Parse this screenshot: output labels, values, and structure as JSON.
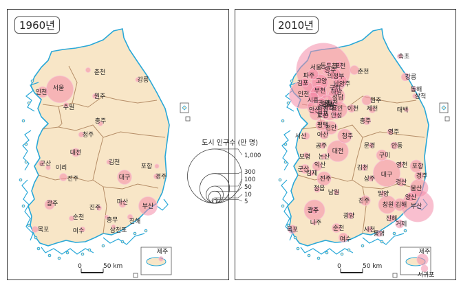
{
  "maps": [
    {
      "title": "1960년",
      "cities": [
        {
          "name": "서울",
          "pop": 245
        },
        {
          "name": "인천",
          "pop": 40
        },
        {
          "name": "수원",
          "pop": 8
        },
        {
          "name": "춘천",
          "pop": 8
        },
        {
          "name": "원주",
          "pop": 8
        },
        {
          "name": "강릉",
          "pop": 6
        },
        {
          "name": "청주",
          "pop": 9
        },
        {
          "name": "충주",
          "pop": 7
        },
        {
          "name": "대전",
          "pop": 23
        },
        {
          "name": "군산",
          "pop": 9
        },
        {
          "name": "이리",
          "pop": 7
        },
        {
          "name": "전주",
          "pop": 19
        },
        {
          "name": "김천",
          "pop": 6
        },
        {
          "name": "대구",
          "pop": 68
        },
        {
          "name": "포항",
          "pop": 6
        },
        {
          "name": "경주",
          "pop": 8
        },
        {
          "name": "광주",
          "pop": 31
        },
        {
          "name": "목포",
          "pop": 13
        },
        {
          "name": "순천",
          "pop": 8
        },
        {
          "name": "여수",
          "pop": 9
        },
        {
          "name": "진주",
          "pop": 8
        },
        {
          "name": "마산",
          "pop": 16
        },
        {
          "name": "충무",
          "pop": 5
        },
        {
          "name": "진해",
          "pop": 9
        },
        {
          "name": "삼천포",
          "pop": 5
        },
        {
          "name": "부산",
          "pop": 116
        },
        {
          "name": "제주",
          "pop": 7
        }
      ],
      "scale_label": "0 50 km"
    },
    {
      "title": "2010년",
      "cities": [
        {
          "name": "서울",
          "pop": 979
        },
        {
          "name": "동두천",
          "pop": 9
        },
        {
          "name": "포천",
          "pop": 15
        },
        {
          "name": "파주",
          "pop": 40
        },
        {
          "name": "의정부",
          "pop": 43
        },
        {
          "name": "양주",
          "pop": 20
        },
        {
          "name": "남양주",
          "pop": 53
        },
        {
          "name": "김포",
          "pop": 24
        },
        {
          "name": "고양",
          "pop": 90
        },
        {
          "name": "구리",
          "pop": 18
        },
        {
          "name": "하남",
          "pop": 15
        },
        {
          "name": "인천",
          "pop": 266
        },
        {
          "name": "부천",
          "pop": 87
        },
        {
          "name": "시흥",
          "pop": 40
        },
        {
          "name": "광명",
          "pop": 34
        },
        {
          "name": "안양",
          "pop": 60
        },
        {
          "name": "성남",
          "pop": 95
        },
        {
          "name": "광주",
          "pop": 21
        },
        {
          "name": "안산",
          "pop": 69
        },
        {
          "name": "군포",
          "pop": 28
        },
        {
          "name": "의왕",
          "pop": 15
        },
        {
          "name": "과천",
          "pop": 7
        },
        {
          "name": "용인",
          "pop": 86
        },
        {
          "name": "이천",
          "pop": 20
        },
        {
          "name": "수원",
          "pop": 107
        },
        {
          "name": "화성",
          "pop": 51
        },
        {
          "name": "오산",
          "pop": 19
        },
        {
          "name": "안성",
          "pop": 17
        },
        {
          "name": "평택",
          "pop": 42
        },
        {
          "name": "춘천",
          "pop": 27
        },
        {
          "name": "원주",
          "pop": 31
        },
        {
          "name": "충주",
          "pop": 20
        },
        {
          "name": "제천",
          "pop": 13
        },
        {
          "name": "속초",
          "pop": 8
        },
        {
          "name": "강릉",
          "pop": 21
        },
        {
          "name": "동해",
          "pop": 9
        },
        {
          "name": "삼척",
          "pop": 7
        },
        {
          "name": "태백",
          "pop": 5
        },
        {
          "name": "천안",
          "pop": 57
        },
        {
          "name": "아산",
          "pop": 26
        },
        {
          "name": "서산",
          "pop": 16
        },
        {
          "name": "청주",
          "pop": 66
        },
        {
          "name": "대전",
          "pop": 150
        },
        {
          "name": "공주",
          "pop": 12
        },
        {
          "name": "보령",
          "pop": 10
        },
        {
          "name": "논산",
          "pop": 12
        },
        {
          "name": "익산",
          "pop": 30
        },
        {
          "name": "군산",
          "pop": 27
        },
        {
          "name": "김제",
          "pop": 9
        },
        {
          "name": "전주",
          "pop": 64
        },
        {
          "name": "정읍",
          "pop": 11
        },
        {
          "name": "남원",
          "pop": 8
        },
        {
          "name": "영주",
          "pop": 11
        },
        {
          "name": "문경",
          "pop": 7
        },
        {
          "name": "안동",
          "pop": 17
        },
        {
          "name": "구미",
          "pop": 40
        },
        {
          "name": "영천",
          "pop": 10
        },
        {
          "name": "김천",
          "pop": 13
        },
        {
          "name": "상주",
          "pop": 10
        },
        {
          "name": "대구",
          "pop": 244
        },
        {
          "name": "경산",
          "pop": 24
        },
        {
          "name": "포항",
          "pop": 51
        },
        {
          "name": "경주",
          "pop": 26
        },
        {
          "name": "울산",
          "pop": 108
        },
        {
          "name": "양산",
          "pop": 27
        },
        {
          "name": "밀양",
          "pop": 10
        },
        {
          "name": "진주",
          "pop": 33
        },
        {
          "name": "창원",
          "pop": 107
        },
        {
          "name": "김해",
          "pop": 50
        },
        {
          "name": "부산",
          "pop": 336
        },
        {
          "name": "광주",
          "pop": 143
        },
        {
          "name": "나주",
          "pop": 9
        },
        {
          "name": "목포",
          "pop": 24
        },
        {
          "name": "순천",
          "pop": 27
        },
        {
          "name": "광양",
          "pop": 14
        },
        {
          "name": "여수",
          "pop": 29
        },
        {
          "name": "사천",
          "pop": 11
        },
        {
          "name": "통영",
          "pop": 13
        },
        {
          "name": "거제",
          "pop": 23
        },
        {
          "name": "진해",
          "pop": 17
        },
        {
          "name": "제주",
          "pop": 43
        },
        {
          "name": "서귀포",
          "pop": 15
        }
      ],
      "scale_label": "0 50 km"
    }
  ],
  "legend": {
    "title": "도시 인구수 (만 명)",
    "values": [
      1000,
      300,
      100,
      50,
      10,
      5
    ],
    "labels": [
      "1,000",
      "300",
      "100",
      "50",
      "10",
      "5"
    ]
  },
  "colors": {
    "land": "#f8e6c7",
    "sea_coast": "#29a8d8",
    "border": "#b58d67",
    "bubble_fill": "#f48aa8",
    "bubble_stroke": "#f7c4d3",
    "text": "#222222"
  }
}
